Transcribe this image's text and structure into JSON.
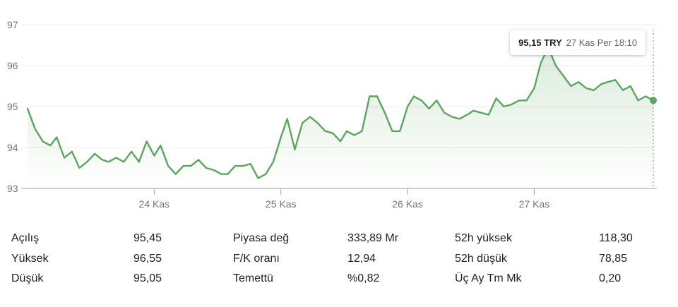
{
  "chart_data": {
    "type": "area",
    "ylim": [
      93,
      97
    ],
    "y_ticks": [
      "93",
      "94",
      "95",
      "96",
      "97"
    ],
    "x_range": [
      23.0,
      27.94
    ],
    "x_ticks": [
      {
        "x": 24,
        "label": "24 Kas"
      },
      {
        "x": 25,
        "label": "25 Kas"
      },
      {
        "x": 26,
        "label": "26 Kas"
      },
      {
        "x": 27,
        "label": "27 Kas"
      }
    ],
    "grid": true,
    "colors": {
      "line": "#5ca55f",
      "fill": "#e6f4e7",
      "grid": "#ececec",
      "axis": "#9aa0a6"
    },
    "series": [
      {
        "x": [
          23.0,
          23.06,
          23.12,
          23.18,
          23.23,
          23.29,
          23.35,
          23.41,
          23.47,
          23.53,
          23.59,
          23.64,
          23.7,
          23.76,
          23.82,
          23.88,
          23.94,
          24.0,
          24.05,
          24.11,
          24.17,
          24.23,
          24.29,
          24.35,
          24.41,
          24.47,
          24.53,
          24.58,
          24.64,
          24.7,
          24.76,
          24.82,
          24.88,
          24.94,
          25.0,
          25.05,
          25.11,
          25.17,
          25.23,
          25.29,
          25.35,
          25.41,
          25.47,
          25.52,
          25.58,
          25.64,
          25.7,
          25.76,
          25.82,
          25.88,
          25.94,
          26.0,
          26.05,
          26.11,
          26.17,
          26.23,
          26.29,
          26.35,
          26.41,
          26.47,
          26.52,
          26.58,
          26.64,
          26.7,
          26.76,
          26.82,
          26.88,
          26.94,
          27.0,
          27.05,
          27.11,
          27.17,
          27.23,
          27.29,
          27.35,
          27.41,
          27.47,
          27.53,
          27.58,
          27.64,
          27.7,
          27.76,
          27.82,
          27.88,
          27.94
        ],
        "y": [
          94.95,
          94.45,
          94.15,
          94.05,
          94.25,
          93.75,
          93.9,
          93.5,
          93.65,
          93.85,
          93.7,
          93.65,
          93.75,
          93.65,
          93.9,
          93.65,
          94.15,
          93.8,
          94.05,
          93.55,
          93.35,
          93.55,
          93.55,
          93.7,
          93.5,
          93.45,
          93.35,
          93.35,
          93.55,
          93.55,
          93.6,
          93.25,
          93.35,
          93.65,
          94.25,
          94.7,
          93.95,
          94.6,
          94.75,
          94.6,
          94.4,
          94.35,
          94.15,
          94.4,
          94.3,
          94.4,
          95.25,
          95.25,
          94.85,
          94.4,
          94.4,
          95.0,
          95.25,
          95.15,
          94.95,
          95.15,
          94.85,
          94.75,
          94.7,
          94.8,
          94.9,
          94.85,
          94.8,
          95.2,
          95.0,
          95.05,
          95.15,
          95.15,
          95.45,
          96.05,
          96.45,
          96.0,
          95.75,
          95.5,
          95.6,
          95.45,
          95.4,
          95.55,
          95.6,
          95.65,
          95.4,
          95.5,
          95.15,
          95.25,
          95.15
        ]
      }
    ]
  },
  "tooltip": {
    "price": "95,15 TRY",
    "time": "27 Kas Per 18:10"
  },
  "stats": [
    [
      {
        "label": "Açılış",
        "value": "95,45"
      },
      {
        "label": "Piyasa değ",
        "value": "333,89 Mr"
      },
      {
        "label": "52h yüksek",
        "value": "118,30"
      }
    ],
    [
      {
        "label": "Yüksek",
        "value": "96,55"
      },
      {
        "label": "F/K oranı",
        "value": "12,94"
      },
      {
        "label": "52h düşük",
        "value": "78,85"
      }
    ],
    [
      {
        "label": "Düşük",
        "value": "95,05"
      },
      {
        "label": "Temettü",
        "value": "%0,82"
      },
      {
        "label": "Üç Ay Tm Mk",
        "value": "0,20"
      }
    ]
  ]
}
